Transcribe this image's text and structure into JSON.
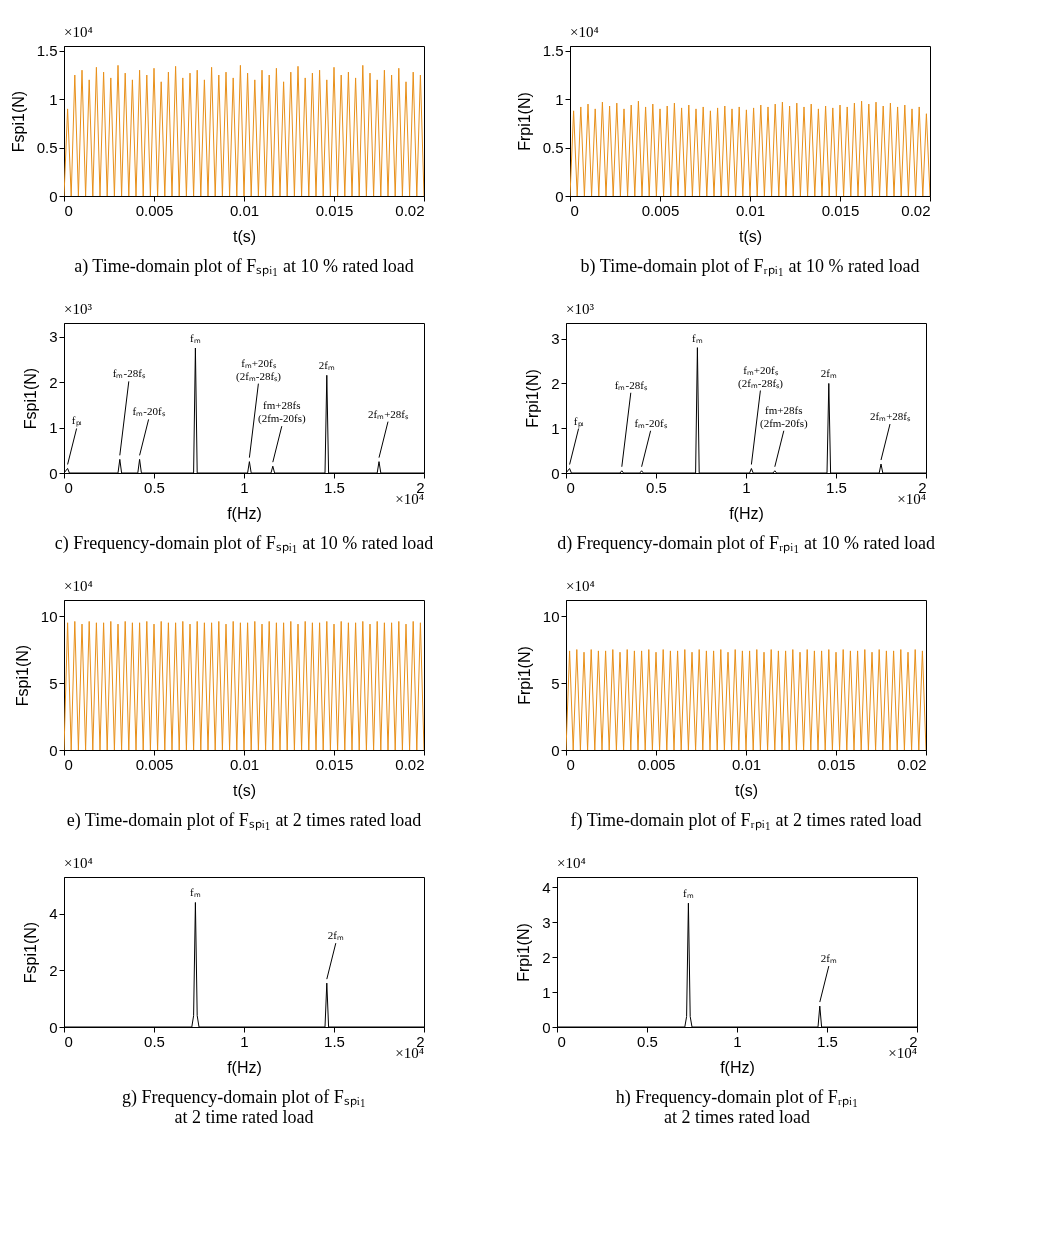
{
  "chart_data": [
    {
      "type": "line",
      "title": "a) Time-domain plot of Fₛₚᵢ₁ at 10 % rated load",
      "xlabel": "t(s)",
      "ylabel": "Fspi1(N)",
      "xlim": [
        0,
        0.02
      ],
      "ylim": [
        0,
        1.55
      ],
      "xticks": [
        0,
        0.005,
        0.01,
        0.015,
        0.02
      ],
      "yticks": [
        0,
        0.5,
        1,
        1.5
      ],
      "annotations": [
        "×10⁴"
      ],
      "x": [
        0,
        0.0002,
        0.0004,
        0.0006,
        0.0008,
        0.001,
        0.0012,
        0.0014,
        0.0016,
        0.0018,
        0.002,
        0.0022,
        0.0024,
        0.0026,
        0.0028,
        0.003,
        0.0032,
        0.0034,
        0.0036,
        0.0038,
        0.004,
        0.0042,
        0.0044,
        0.0046,
        0.0048,
        0.005,
        0.0052,
        0.0054,
        0.0056,
        0.0058,
        0.006,
        0.0062,
        0.0064,
        0.0066,
        0.0068,
        0.007,
        0.0072,
        0.0074,
        0.0076,
        0.0078,
        0.008,
        0.0082,
        0.0084,
        0.0086,
        0.0088,
        0.009,
        0.0092,
        0.0094,
        0.0096,
        0.0098,
        0.01,
        0.0102,
        0.0104,
        0.0106,
        0.0108,
        0.011,
        0.0112,
        0.0114,
        0.0116,
        0.0118,
        0.012,
        0.0122,
        0.0124,
        0.0126,
        0.0128,
        0.013,
        0.0132,
        0.0134,
        0.0136,
        0.0138,
        0.014,
        0.0142,
        0.0144,
        0.0146,
        0.0148,
        0.015,
        0.0152,
        0.0154,
        0.0156,
        0.0158,
        0.016,
        0.0162,
        0.0164,
        0.0166,
        0.0168,
        0.017,
        0.0172,
        0.0174,
        0.0176,
        0.0178,
        0.018,
        0.0182,
        0.0184,
        0.0186,
        0.0188,
        0.019,
        0.0192,
        0.0194,
        0.0196,
        0.0198,
        0.02
      ],
      "series": [
        {
          "color": "#e8901a",
          "values": [
            0,
            0.9,
            0,
            1.25,
            0,
            1.3,
            0,
            1.2,
            0,
            1.33,
            0,
            1.28,
            0,
            1.22,
            0,
            1.35,
            0,
            1.27,
            0,
            1.2,
            0,
            1.3,
            0,
            1.25,
            0,
            1.32,
            0,
            1.18,
            0,
            1.28,
            0,
            1.34,
            0,
            1.22,
            0,
            1.27,
            0,
            1.3,
            0,
            1.2,
            0,
            1.33,
            0,
            1.25,
            0,
            1.28,
            0,
            1.22,
            0,
            1.35,
            0,
            1.27,
            0,
            1.2,
            0,
            1.3,
            0,
            1.25,
            0,
            1.32,
            0,
            1.18,
            0,
            1.28,
            0,
            1.34,
            0,
            1.22,
            0,
            1.27,
            0,
            1.3,
            0,
            1.2,
            0,
            1.33,
            0,
            1.25,
            0,
            1.28,
            0,
            1.22,
            0,
            1.35,
            0,
            1.27,
            0,
            1.2,
            0,
            1.3,
            0,
            1.25,
            0,
            1.32,
            0,
            1.18,
            0,
            1.28,
            0,
            1.25,
            0
          ]
        }
      ]
    },
    {
      "type": "line",
      "title": "b) Time-domain plot of Fᵣₚᵢ₁ at 10 % rated load",
      "xlabel": "t(s)",
      "ylabel": "Frpi1(N)",
      "xlim": [
        0,
        0.02
      ],
      "ylim": [
        0,
        1.55
      ],
      "xticks": [
        0,
        0.005,
        0.01,
        0.015,
        0.02
      ],
      "yticks": [
        0,
        0.5,
        1,
        1.5
      ],
      "annotations": [
        "×10⁴"
      ],
      "x": [
        0,
        0.0002,
        0.0004,
        0.0006,
        0.0008,
        0.001,
        0.0012,
        0.0014,
        0.0016,
        0.0018,
        0.002,
        0.0022,
        0.0024,
        0.0026,
        0.0028,
        0.003,
        0.0032,
        0.0034,
        0.0036,
        0.0038,
        0.004,
        0.0042,
        0.0044,
        0.0046,
        0.0048,
        0.005,
        0.0052,
        0.0054,
        0.0056,
        0.0058,
        0.006,
        0.0062,
        0.0064,
        0.0066,
        0.0068,
        0.007,
        0.0072,
        0.0074,
        0.0076,
        0.0078,
        0.008,
        0.0082,
        0.0084,
        0.0086,
        0.0088,
        0.009,
        0.0092,
        0.0094,
        0.0096,
        0.0098,
        0.01,
        0.0102,
        0.0104,
        0.0106,
        0.0108,
        0.011,
        0.0112,
        0.0114,
        0.0116,
        0.0118,
        0.012,
        0.0122,
        0.0124,
        0.0126,
        0.0128,
        0.013,
        0.0132,
        0.0134,
        0.0136,
        0.0138,
        0.014,
        0.0142,
        0.0144,
        0.0146,
        0.0148,
        0.015,
        0.0152,
        0.0154,
        0.0156,
        0.0158,
        0.016,
        0.0162,
        0.0164,
        0.0166,
        0.0168,
        0.017,
        0.0172,
        0.0174,
        0.0176,
        0.0178,
        0.018,
        0.0182,
        0.0184,
        0.0186,
        0.0188,
        0.019,
        0.0192,
        0.0194,
        0.0196,
        0.0198,
        0.02
      ],
      "series": [
        {
          "color": "#e8901a",
          "values": [
            0,
            0.88,
            0,
            0.92,
            0,
            0.95,
            0,
            0.9,
            0,
            0.97,
            0,
            0.93,
            0,
            0.96,
            0,
            0.9,
            0,
            0.94,
            0,
            0.98,
            0,
            0.92,
            0,
            0.95,
            0,
            0.9,
            0,
            0.93,
            0,
            0.96,
            0,
            0.91,
            0,
            0.94,
            0,
            0.9,
            0,
            0.92,
            0,
            0.88,
            0,
            0.91,
            0,
            0.93,
            0,
            0.9,
            0,
            0.92,
            0,
            0.89,
            0,
            0.91,
            0,
            0.94,
            0,
            0.92,
            0,
            0.95,
            0,
            0.97,
            0,
            0.93,
            0,
            0.96,
            0,
            0.92,
            0,
            0.95,
            0,
            0.9,
            0,
            0.93,
            0,
            0.91,
            0,
            0.94,
            0,
            0.92,
            0,
            0.96,
            0,
            0.98,
            0,
            0.95,
            0,
            0.97,
            0,
            0.93,
            0,
            0.96,
            0,
            0.92,
            0,
            0.94,
            0,
            0.9,
            0,
            0.92,
            0,
            0.85,
            0
          ]
        }
      ]
    },
    {
      "type": "line",
      "title": "c) Frequency-domain plot of Fₛₚᵢ₁ at 10 % rated load",
      "xlabel": "f(Hz)",
      "ylabel": "Fspi1(N)",
      "xlim": [
        0,
        2
      ],
      "ylim": [
        0,
        3.3
      ],
      "xticks": [
        0,
        0.5,
        1,
        1.5,
        2
      ],
      "yticks": [
        0,
        1,
        2,
        3
      ],
      "annotations": [
        "×10³",
        "×10⁴",
        {
          "text": "fₚᵢ",
          "x": 0.02,
          "y": 0.1
        },
        {
          "text": "fₘ-28fₛ",
          "x": 0.31,
          "y": 0.3
        },
        {
          "text": "fₘ-20fₛ",
          "x": 0.42,
          "y": 0.3
        },
        {
          "text": "fₘ",
          "x": 0.73,
          "y": 2.75
        },
        {
          "text": "fₘ+20fₛ\n(2fₘ-28fₛ)",
          "x": 1.03,
          "y": 0.25
        },
        {
          "text": "fm+28fs\n(2fm-20fs)",
          "x": 1.16,
          "y": 0.15
        },
        {
          "text": "2fₘ",
          "x": 1.46,
          "y": 2.15
        },
        {
          "text": "2fₘ+28fₛ",
          "x": 1.75,
          "y": 0.25
        }
      ],
      "x": [
        0,
        0.02,
        0.03,
        0.3,
        0.31,
        0.32,
        0.41,
        0.42,
        0.43,
        0.72,
        0.73,
        0.74,
        1.02,
        1.03,
        1.04,
        1.15,
        1.16,
        1.17,
        1.45,
        1.46,
        1.47,
        1.74,
        1.75,
        1.76,
        2
      ],
      "series": [
        {
          "color": "#000000",
          "values": [
            0,
            0.1,
            0,
            0,
            0.3,
            0,
            0,
            0.3,
            0,
            0,
            2.75,
            0,
            0,
            0.25,
            0,
            0,
            0.15,
            0,
            0,
            2.15,
            0,
            0,
            0.25,
            0,
            0
          ]
        }
      ]
    },
    {
      "type": "line",
      "title": "d) Frequency-domain plot of Fᵣₚᵢ₁ at 10 % rated load",
      "xlabel": "f(Hz)",
      "ylabel": "Frpi1(N)",
      "xlim": [
        0,
        2
      ],
      "ylim": [
        0,
        3.35
      ],
      "xticks": [
        0,
        0.5,
        1,
        1.5,
        2
      ],
      "yticks": [
        0,
        1,
        2,
        3
      ],
      "annotations": [
        "×10³",
        "×10⁴",
        {
          "text": "fₚᵢ",
          "x": 0.02,
          "y": 0.1
        },
        {
          "text": "fₘ-28fₛ",
          "x": 0.31,
          "y": 0.05
        },
        {
          "text": "fₘ-20fₛ",
          "x": 0.42,
          "y": 0.05
        },
        {
          "text": "fₘ",
          "x": 0.73,
          "y": 2.8
        },
        {
          "text": "fₘ+20fₛ\n(2fₘ-28fₛ)",
          "x": 1.03,
          "y": 0.1
        },
        {
          "text": "fm+28fs\n(2fm-20fs)",
          "x": 1.16,
          "y": 0.05
        },
        {
          "text": "2fₘ",
          "x": 1.46,
          "y": 2.0
        },
        {
          "text": "2fₘ+28fₛ",
          "x": 1.75,
          "y": 0.2
        }
      ],
      "x": [
        0,
        0.02,
        0.03,
        0.3,
        0.31,
        0.32,
        0.41,
        0.42,
        0.43,
        0.72,
        0.73,
        0.74,
        1.02,
        1.03,
        1.04,
        1.15,
        1.16,
        1.17,
        1.45,
        1.46,
        1.47,
        1.74,
        1.75,
        1.76,
        2
      ],
      "series": [
        {
          "color": "#000000",
          "values": [
            0,
            0.1,
            0,
            0,
            0.05,
            0,
            0,
            0.05,
            0,
            0,
            2.8,
            0,
            0,
            0.1,
            0,
            0,
            0.05,
            0,
            0,
            2.0,
            0,
            0,
            0.2,
            0,
            0
          ]
        }
      ]
    },
    {
      "type": "line",
      "title": "e) Time-domain plot of Fₛₚᵢ₁ at 2 times rated load",
      "xlabel": "t(s)",
      "ylabel": "Fspi1(N)",
      "xlim": [
        0,
        0.02
      ],
      "ylim": [
        0,
        11.2
      ],
      "xticks": [
        0,
        0.005,
        0.01,
        0.015,
        0.02
      ],
      "yticks": [
        0,
        5,
        10
      ],
      "annotations": [
        "×10⁴"
      ],
      "x": [
        0,
        0.0002,
        0.0004,
        0.0006,
        0.0008,
        0.001,
        0.0012,
        0.0014,
        0.0016,
        0.0018,
        0.002,
        0.0022,
        0.0024,
        0.0026,
        0.0028,
        0.003,
        0.0032,
        0.0034,
        0.0036,
        0.0038,
        0.004,
        0.0042,
        0.0044,
        0.0046,
        0.0048,
        0.005,
        0.0052,
        0.0054,
        0.0056,
        0.0058,
        0.006,
        0.0062,
        0.0064,
        0.0066,
        0.0068,
        0.007,
        0.0072,
        0.0074,
        0.0076,
        0.0078,
        0.008,
        0.0082,
        0.0084,
        0.0086,
        0.0088,
        0.009,
        0.0092,
        0.0094,
        0.0096,
        0.0098,
        0.01,
        0.0102,
        0.0104,
        0.0106,
        0.0108,
        0.011,
        0.0112,
        0.0114,
        0.0116,
        0.0118,
        0.012,
        0.0122,
        0.0124,
        0.0126,
        0.0128,
        0.013,
        0.0132,
        0.0134,
        0.0136,
        0.0138,
        0.014,
        0.0142,
        0.0144,
        0.0146,
        0.0148,
        0.015,
        0.0152,
        0.0154,
        0.0156,
        0.0158,
        0.016,
        0.0162,
        0.0164,
        0.0166,
        0.0168,
        0.017,
        0.0172,
        0.0174,
        0.0176,
        0.0178,
        0.018,
        0.0182,
        0.0184,
        0.0186,
        0.0188,
        0.019,
        0.0192,
        0.0194,
        0.0196,
        0.0198,
        0.02
      ],
      "series": [
        {
          "color": "#e8901a",
          "values": [
            0,
            9.5,
            0,
            9.6,
            0,
            9.4,
            0,
            9.6,
            0,
            9.5,
            0,
            9.5,
            0,
            9.6,
            0,
            9.4,
            0,
            9.6,
            0,
            9.5,
            0,
            9.5,
            0,
            9.6,
            0,
            9.4,
            0,
            9.6,
            0,
            9.5,
            0,
            9.5,
            0,
            9.6,
            0,
            9.4,
            0,
            9.6,
            0,
            9.5,
            0,
            9.5,
            0,
            9.6,
            0,
            9.4,
            0,
            9.6,
            0,
            9.5,
            0,
            9.5,
            0,
            9.6,
            0,
            9.4,
            0,
            9.6,
            0,
            9.5,
            0,
            9.5,
            0,
            9.6,
            0,
            9.4,
            0,
            9.6,
            0,
            9.5,
            0,
            9.5,
            0,
            9.6,
            0,
            9.4,
            0,
            9.6,
            0,
            9.5,
            0,
            9.5,
            0,
            9.6,
            0,
            9.4,
            0,
            9.6,
            0,
            9.5,
            0,
            9.5,
            0,
            9.6,
            0,
            9.4,
            0,
            9.6,
            0,
            9.5,
            0
          ]
        }
      ]
    },
    {
      "type": "line",
      "title": "f) Time-domain plot of Fᵣₚᵢ₁ at 2 times rated load",
      "xlabel": "t(s)",
      "ylabel": "Frpi1(N)",
      "xlim": [
        0,
        0.02
      ],
      "ylim": [
        0,
        11.2
      ],
      "xticks": [
        0,
        0.005,
        0.01,
        0.015,
        0.02
      ],
      "yticks": [
        0,
        5,
        10
      ],
      "annotations": [
        "×10⁴"
      ],
      "x": [
        0,
        0.0002,
        0.0004,
        0.0006,
        0.0008,
        0.001,
        0.0012,
        0.0014,
        0.0016,
        0.0018,
        0.002,
        0.0022,
        0.0024,
        0.0026,
        0.0028,
        0.003,
        0.0032,
        0.0034,
        0.0036,
        0.0038,
        0.004,
        0.0042,
        0.0044,
        0.0046,
        0.0048,
        0.005,
        0.0052,
        0.0054,
        0.0056,
        0.0058,
        0.006,
        0.0062,
        0.0064,
        0.0066,
        0.0068,
        0.007,
        0.0072,
        0.0074,
        0.0076,
        0.0078,
        0.008,
        0.0082,
        0.0084,
        0.0086,
        0.0088,
        0.009,
        0.0092,
        0.0094,
        0.0096,
        0.0098,
        0.01,
        0.0102,
        0.0104,
        0.0106,
        0.0108,
        0.011,
        0.0112,
        0.0114,
        0.0116,
        0.0118,
        0.012,
        0.0122,
        0.0124,
        0.0126,
        0.0128,
        0.013,
        0.0132,
        0.0134,
        0.0136,
        0.0138,
        0.014,
        0.0142,
        0.0144,
        0.0146,
        0.0148,
        0.015,
        0.0152,
        0.0154,
        0.0156,
        0.0158,
        0.016,
        0.0162,
        0.0164,
        0.0166,
        0.0168,
        0.017,
        0.0172,
        0.0174,
        0.0176,
        0.0178,
        0.018,
        0.0182,
        0.0184,
        0.0186,
        0.0188,
        0.019,
        0.0192,
        0.0194,
        0.0196,
        0.0198,
        0.02
      ],
      "series": [
        {
          "color": "#e8901a",
          "values": [
            0,
            7.4,
            0,
            7.5,
            0,
            7.3,
            0,
            7.5,
            0,
            7.4,
            0,
            7.4,
            0,
            7.5,
            0,
            7.3,
            0,
            7.5,
            0,
            7.4,
            0,
            7.4,
            0,
            7.5,
            0,
            7.3,
            0,
            7.5,
            0,
            7.4,
            0,
            7.4,
            0,
            7.5,
            0,
            7.3,
            0,
            7.5,
            0,
            7.4,
            0,
            7.4,
            0,
            7.5,
            0,
            7.3,
            0,
            7.5,
            0,
            7.4,
            0,
            7.4,
            0,
            7.5,
            0,
            7.3,
            0,
            7.5,
            0,
            7.4,
            0,
            7.4,
            0,
            7.5,
            0,
            7.3,
            0,
            7.5,
            0,
            7.4,
            0,
            7.4,
            0,
            7.5,
            0,
            7.3,
            0,
            7.5,
            0,
            7.4,
            0,
            7.4,
            0,
            7.5,
            0,
            7.3,
            0,
            7.5,
            0,
            7.4,
            0,
            7.4,
            0,
            7.5,
            0,
            7.3,
            0,
            7.5,
            0,
            7.4,
            0
          ]
        }
      ]
    },
    {
      "type": "line",
      "title": "g) Frequency-domain plot of Fₛₚᵢ₁\nat 2 time rated load",
      "xlabel": "f(Hz)",
      "ylabel": "Fspi1(N)",
      "xlim": [
        0,
        2
      ],
      "ylim": [
        0,
        5.3
      ],
      "xticks": [
        0,
        0.5,
        1,
        1.5,
        2
      ],
      "yticks": [
        0,
        2,
        4
      ],
      "annotations": [
        "×10⁴",
        "×10⁴",
        {
          "text": "fₘ",
          "x": 0.73,
          "y": 4.4
        },
        {
          "text": "2fₘ",
          "x": 1.46,
          "y": 1.55
        }
      ],
      "x": [
        0,
        0.71,
        0.72,
        0.73,
        0.74,
        0.75,
        1.45,
        1.46,
        1.47,
        2
      ],
      "series": [
        {
          "color": "#000000",
          "values": [
            0,
            0,
            0.4,
            4.4,
            0.4,
            0,
            0,
            1.55,
            0,
            0
          ]
        }
      ]
    },
    {
      "type": "line",
      "title": "h) Frequency-domain plot of Fᵣₚᵢ₁\nat 2 times rated load",
      "xlabel": "f(Hz)",
      "ylabel": "Frpi1(N)",
      "xlim": [
        0,
        2
      ],
      "ylim": [
        0,
        4.3
      ],
      "xticks": [
        0,
        0.5,
        1,
        1.5,
        2
      ],
      "yticks": [
        0,
        1,
        2,
        3,
        4
      ],
      "annotations": [
        "×10⁴",
        "×10⁴",
        {
          "text": "fₘ",
          "x": 0.73,
          "y": 3.55
        },
        {
          "text": "2fₘ",
          "x": 1.46,
          "y": 0.6
        }
      ],
      "x": [
        0,
        0.71,
        0.72,
        0.73,
        0.74,
        0.75,
        1.45,
        1.46,
        1.47,
        2
      ],
      "series": [
        {
          "color": "#000000",
          "values": [
            0,
            0,
            0.3,
            3.55,
            0.3,
            0,
            0,
            0.6,
            0,
            0
          ]
        }
      ]
    }
  ]
}
